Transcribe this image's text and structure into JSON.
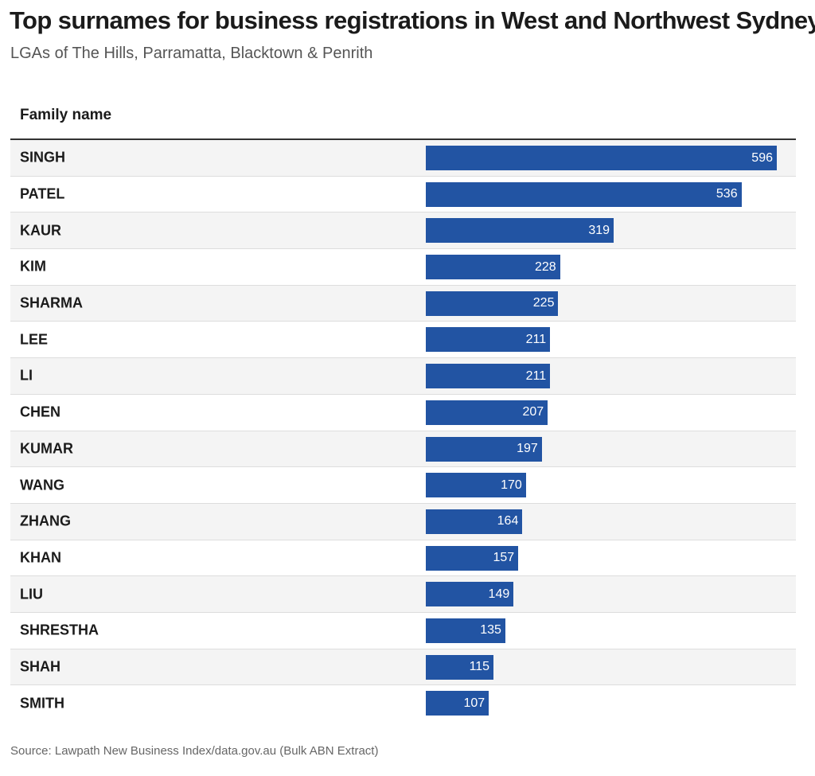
{
  "header": {
    "title": "Top surnames for business registrations in West and Northwest Sydney",
    "subtitle": "LGAs of The Hills, Parramatta, Blacktown & Penrith"
  },
  "table": {
    "column_header": "Family name"
  },
  "footer": {
    "source": "Source: Lawpath New Business Index/data.gov.au (Bulk ABN Extract)"
  },
  "colors": {
    "bar": "#2254a3"
  },
  "chart_data": {
    "type": "bar",
    "orientation": "horizontal",
    "title": "Top surnames for business registrations in West and Northwest Sydney",
    "subtitle": "LGAs of The Hills, Parramatta, Blacktown & Penrith",
    "column_header": "Family name",
    "categories": [
      "SINGH",
      "PATEL",
      "KAUR",
      "KIM",
      "SHARMA",
      "LEE",
      "LI",
      "CHEN",
      "KUMAR",
      "WANG",
      "ZHANG",
      "KHAN",
      "LIU",
      "SHRESTHA",
      "SHAH",
      "SMITH"
    ],
    "values": [
      596,
      536,
      319,
      228,
      225,
      211,
      211,
      207,
      197,
      170,
      164,
      157,
      149,
      135,
      115,
      107
    ],
    "xlim": [
      0,
      596
    ],
    "grid": false,
    "legend": "none"
  }
}
